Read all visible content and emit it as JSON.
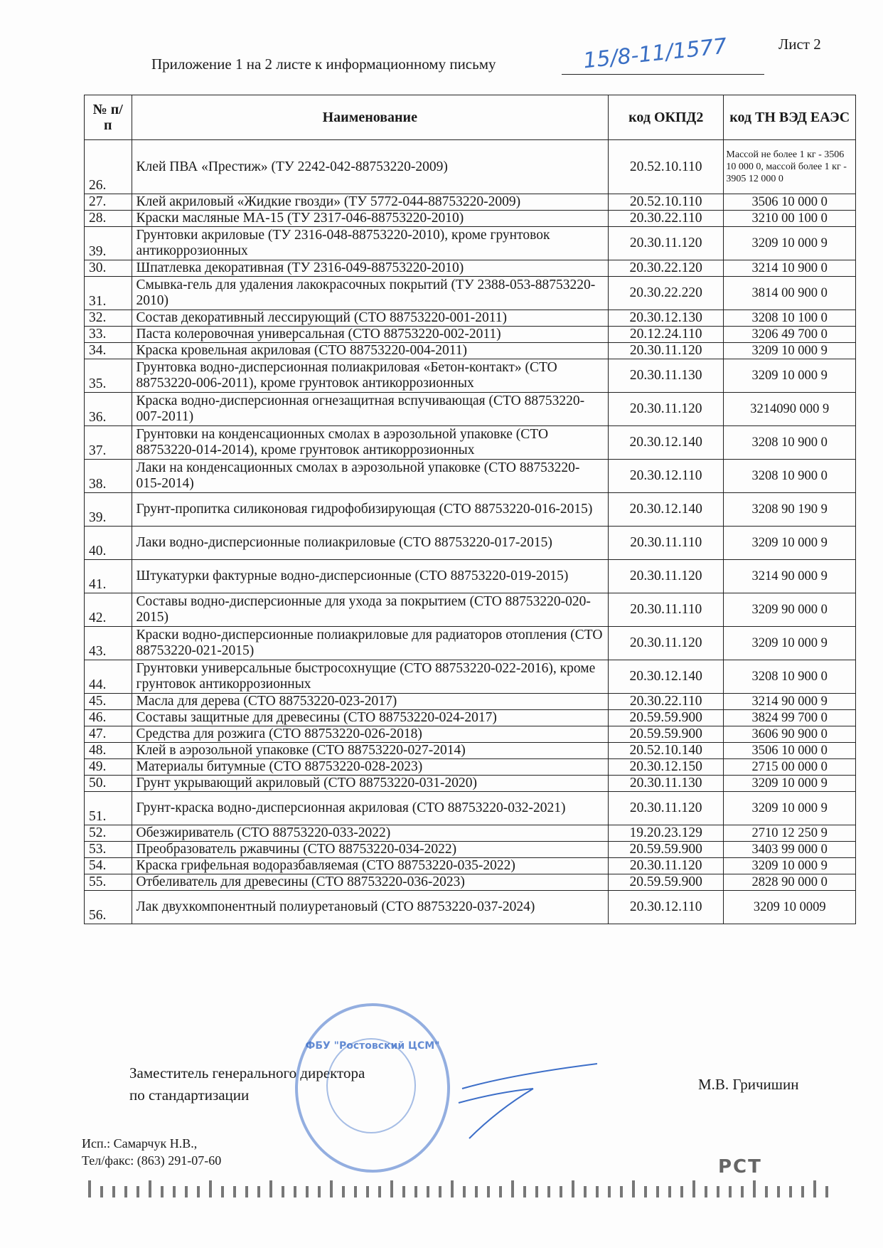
{
  "header": {
    "sheet": "Лист 2",
    "appendix": "Приложение 1 на 2 листе к информационному письму",
    "handwritten_number": "15/8-11/1577"
  },
  "table": {
    "headers": {
      "num": "№ п/п",
      "name": "Наименование",
      "okpd": "код ОКПД2",
      "tnved": "код ТН ВЭД ЕАЭС"
    },
    "rows": [
      {
        "n": "26.",
        "name": "Клей ПВА «Престиж» (ТУ 2242-042-88753220-2009)",
        "okpd": "20.52.10.110",
        "tn": "Массой не более 1 кг - 3506 10 000 0, массой более 1 кг - 3905 12 000 0"
      },
      {
        "n": "27.",
        "name": "Клей акриловый «Жидкие гвозди» (ТУ 5772-044-88753220-2009)",
        "okpd": "20.52.10.110",
        "tn": "3506 10 000 0"
      },
      {
        "n": "28.",
        "name": "Краски масляные МА-15 (ТУ 2317-046-88753220-2010)",
        "okpd": "20.30.22.110",
        "tn": "3210 00 100 0"
      },
      {
        "n": "39.",
        "name": "Грунтовки акриловые (ТУ 2316-048-88753220-2010), кроме грунтовок антикоррозионных",
        "okpd": "20.30.11.120",
        "tn": "3209 10 000 9"
      },
      {
        "n": "30.",
        "name": "Шпатлевка декоративная  (ТУ 2316-049-88753220-2010)",
        "okpd": "20.30.22.120",
        "tn": "3214 10 900 0"
      },
      {
        "n": "31.",
        "name": "Смывка-гель для удаления лакокрасочных покрытий (ТУ 2388-053-88753220-2010)",
        "okpd": "20.30.22.220",
        "tn": "3814 00 900 0"
      },
      {
        "n": "32.",
        "name": "Состав декоративный лессирующий (СТО 88753220-001-2011)",
        "okpd": "20.30.12.130",
        "tn": "3208 10 100 0"
      },
      {
        "n": "33.",
        "name": "Паста колеровочная универсальная (СТО 88753220-002-2011)",
        "okpd": "20.12.24.110",
        "tn": "3206 49 700 0"
      },
      {
        "n": "34.",
        "name": "Краска кровельная акриловая (СТО 88753220-004-2011)",
        "okpd": "20.30.11.120",
        "tn": "3209 10 000 9"
      },
      {
        "n": "35.",
        "name": "Грунтовка водно-дисперсионная полиакриловая «Бетон-контакт» (СТО 88753220-006-2011), кроме грунтовок антикоррозионных",
        "okpd": "20.30.11.130",
        "tn": "3209 10 000 9"
      },
      {
        "n": "36.",
        "name": "Краска водно-дисперсионная огнезащитная вспучивающая (СТО 88753220-007-2011)",
        "okpd": "20.30.11.120",
        "tn": "3214090 000 9"
      },
      {
        "n": "37.",
        "name": "Грунтовки на конденсационных смолах в аэрозольной упаковке (СТО 88753220-014-2014), кроме грунтовок антикоррозионных",
        "okpd": "20.30.12.140",
        "tn": "3208 10 900 0"
      },
      {
        "n": "38.",
        "name": "Лаки на конденсационных смолах в аэрозольной упаковке (СТО 88753220-015-2014)",
        "okpd": "20.30.12.110",
        "tn": "3208 10 900 0"
      },
      {
        "n": "39.",
        "name": "Грунт-пропитка силиконовая гидрофобизирующая (СТО 88753220-016-2015)",
        "okpd": "20.30.12.140",
        "tn": "3208 90 190 9"
      },
      {
        "n": "40.",
        "name": "Лаки водно-дисперсионные полиакриловые (СТО 88753220-017-2015)",
        "okpd": "20.30.11.110",
        "tn": "3209 10 000 9"
      },
      {
        "n": "41.",
        "name": "Штукатурки фактурные водно-дисперсионные (СТО 88753220-019-2015)",
        "okpd": "20.30.11.120",
        "tn": "3214 90 000 9"
      },
      {
        "n": "42.",
        "name": "Составы водно-дисперсионные для ухода за покрытием (СТО 88753220-020-2015)",
        "okpd": "20.30.11.110",
        "tn": "3209 90 000 0"
      },
      {
        "n": "43.",
        "name": "Краски водно-дисперсионные полиакриловые для радиаторов отопления (СТО 88753220-021-2015)",
        "okpd": "20.30.11.120",
        "tn": "3209 10 000 9"
      },
      {
        "n": "44.",
        "name": "Грунтовки универсальные быстросохнущие (СТО 88753220-022-2016), кроме грунтовок антикоррозионных",
        "okpd": "20.30.12.140",
        "tn": "3208 10 900 0"
      },
      {
        "n": "45.",
        "name": "Масла для дерева (СТО 88753220-023-2017)",
        "okpd": "20.30.22.110",
        "tn": "3214 90 000 9"
      },
      {
        "n": "46.",
        "name": "Составы защитные для древесины (СТО 88753220-024-2017)",
        "okpd": "20.59.59.900",
        "tn": "3824 99 700 0"
      },
      {
        "n": "47.",
        "name": "Средства для розжига (СТО 88753220-026-2018)",
        "okpd": "20.59.59.900",
        "tn": "3606 90 900 0"
      },
      {
        "n": "48.",
        "name": "Клей в аэрозольной упаковке (СТО 88753220-027-2014)",
        "okpd": "20.52.10.140",
        "tn": "3506 10 000 0"
      },
      {
        "n": "49.",
        "name": "Материалы битумные (СТО 88753220-028-2023)",
        "okpd": "20.30.12.150",
        "tn": "2715 00 000 0"
      },
      {
        "n": "50.",
        "name": "Грунт укрывающий акриловый (СТО 88753220-031-2020)",
        "okpd": "20.30.11.130",
        "tn": "3209 10 000 9"
      },
      {
        "n": "51.",
        "name": "Грунт-краска водно-дисперсионная акриловая (СТО 88753220-032-2021)",
        "okpd": "20.30.11.120",
        "tn": "3209 10 000 9"
      },
      {
        "n": "52.",
        "name": "Обезжириватель (СТО 88753220-033-2022)",
        "okpd": "19.20.23.129",
        "tn": "2710 12 250 9"
      },
      {
        "n": "53.",
        "name": "Преобразователь ржавчины (СТО 88753220-034-2022)",
        "okpd": "20.59.59.900",
        "tn": "3403 99 000 0"
      },
      {
        "n": "54.",
        "name": "Краска грифельная водоразбавляемая (СТО 88753220-035-2022)",
        "okpd": "20.30.11.120",
        "tn": "3209 10 000 9"
      },
      {
        "n": "55.",
        "name": "Отбеливатель для древесины (СТО 88753220-036-2023)",
        "okpd": "20.59.59.900",
        "tn": "2828 90 000 0"
      },
      {
        "n": "56.",
        "name": "Лак двухкомпонентный полиуретановый (СТО 88753220-037-2024)",
        "okpd": "20.30.12.110",
        "tn": "3209 10 0009"
      }
    ]
  },
  "footer": {
    "position_line1": "Заместитель генерального директора",
    "position_line2": "по стандартизации",
    "signatory": "М.В. Гричишин",
    "executor": "Исп.: Самарчук Н.В.,",
    "phone": "Тел/факс: (863) 291-07-60",
    "stamp_text": "ФБУ \"Ростовский ЦСМ\"",
    "logo": "РСТ"
  },
  "colors": {
    "ink": "#1a1a1a",
    "stamp": "#3c6ec8"
  }
}
